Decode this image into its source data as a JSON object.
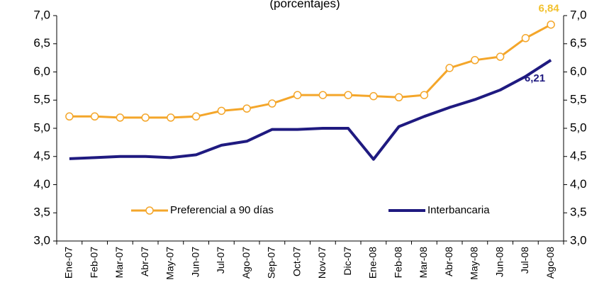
{
  "chart_data": {
    "type": "line",
    "subtitle": "(porcentajes)",
    "categories": [
      "Ene-07",
      "Feb-07",
      "Mar-07",
      "Abr-07",
      "May-07",
      "Jun-07",
      "Jul-07",
      "Ago-07",
      "Sep-07",
      "Oct-07",
      "Nov-07",
      "Dic-07",
      "Ene-08",
      "Feb-08",
      "Mar-08",
      "Abr-08",
      "May-08",
      "Jun-08",
      "Jul-08",
      "Ago-08"
    ],
    "series": [
      {
        "name": "Preferencial a 90 días",
        "color": "#f4a62a",
        "markers": true,
        "label_color": "#f2c12e",
        "values": [
          5.21,
          5.21,
          5.19,
          5.19,
          5.19,
          5.21,
          5.31,
          5.35,
          5.44,
          5.59,
          5.59,
          5.59,
          5.57,
          5.55,
          5.59,
          6.07,
          6.21,
          6.27,
          6.6,
          6.84
        ],
        "value_labels": [
          null,
          null,
          null,
          null,
          null,
          null,
          null,
          null,
          null,
          null,
          null,
          null,
          null,
          null,
          null,
          null,
          null,
          null,
          null,
          "6,84"
        ]
      },
      {
        "name": "Interbancaria",
        "color": "#1f1a80",
        "markers": false,
        "label_color": "#1f1a80",
        "values": [
          4.46,
          4.48,
          4.5,
          4.5,
          4.48,
          4.53,
          4.7,
          4.77,
          4.98,
          4.98,
          5.0,
          5.0,
          4.45,
          5.03,
          5.21,
          5.37,
          5.51,
          5.68,
          5.92,
          6.21
        ],
        "value_labels": [
          null,
          null,
          null,
          null,
          null,
          null,
          null,
          null,
          null,
          null,
          null,
          null,
          null,
          null,
          null,
          null,
          null,
          null,
          null,
          "6,21"
        ]
      }
    ],
    "ylim": [
      3.0,
      7.0
    ],
    "yticks": [
      {
        "value": 3.0,
        "label": "3,0"
      },
      {
        "value": 3.5,
        "label": "3,5"
      },
      {
        "value": 4.0,
        "label": "4,0"
      },
      {
        "value": 4.5,
        "label": "4,5"
      },
      {
        "value": 5.0,
        "label": "5,0"
      },
      {
        "value": 5.5,
        "label": "5,5"
      },
      {
        "value": 6.0,
        "label": "6,0"
      },
      {
        "value": 6.5,
        "label": "6,5"
      },
      {
        "value": 7.0,
        "label": "7,0"
      }
    ],
    "y2lim": [
      3.0,
      7.0
    ],
    "y2ticks": [
      {
        "value": 3.0,
        "label": "3,0"
      },
      {
        "value": 3.5,
        "label": "3,5"
      },
      {
        "value": 4.0,
        "label": "4,0"
      },
      {
        "value": 4.5,
        "label": "4,5"
      },
      {
        "value": 5.0,
        "label": "5,0"
      },
      {
        "value": 5.5,
        "label": "5,5"
      },
      {
        "value": 6.0,
        "label": "6,0"
      },
      {
        "value": 6.5,
        "label": "6,5"
      },
      {
        "value": 7.0,
        "label": "7,0"
      }
    ],
    "grid": false,
    "legend": "bottom"
  }
}
